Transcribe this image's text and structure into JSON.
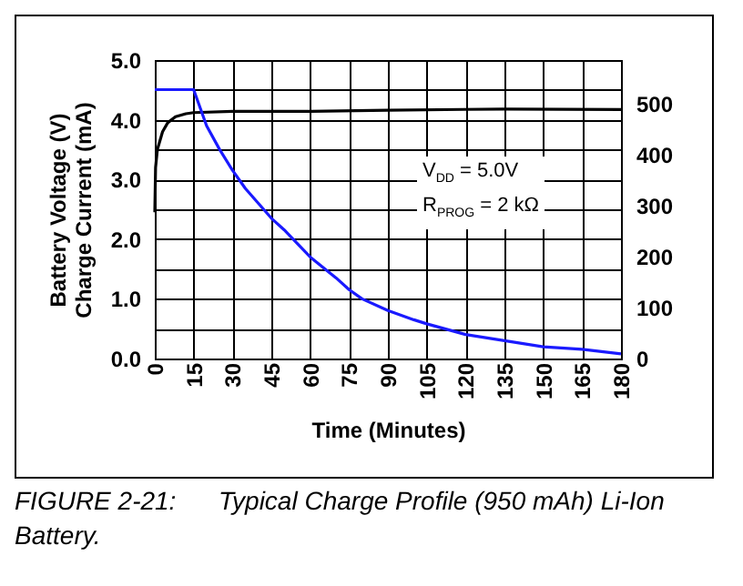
{
  "chart_data": {
    "type": "line",
    "title": "FIGURE 2-21:      Typical Charge Profile (950 mAh) Li-Ion Battery.",
    "xlabel": "Time (Minutes)",
    "ylabel": "Battery Voltage (V)\nCharge Current (mA)",
    "annotations": [
      "V$_{DD}$ = 5.0V",
      "R$_{PROG}$ = 2 kΩ"
    ],
    "series": [
      {
        "color": "#000000",
        "x": [
          0,
          0.3,
          1,
          3,
          5,
          8,
          12,
          15,
          30,
          60,
          90,
          135,
          180
        ],
        "values": [
          2.45,
          3.2,
          3.5,
          3.8,
          3.95,
          4.05,
          4.1,
          4.12,
          4.14,
          4.14,
          4.16,
          4.18,
          4.17
        ]
      },
      {
        "color": "#1a1aff",
        "axis": "y2",
        "x": [
          0,
          15,
          20,
          25,
          30,
          35,
          40,
          45,
          50,
          60,
          70,
          75,
          80,
          90,
          100,
          105,
          120,
          135,
          150,
          165,
          180
        ],
        "values": [
          527,
          527,
          456,
          410,
          369,
          333,
          304,
          275,
          252,
          199,
          158,
          135,
          117,
          94,
          76,
          68,
          47,
          35,
          23,
          18,
          9
        ]
      }
    ],
    "xlim": [
      0,
      180
    ],
    "xticks": [
      0,
      15,
      30,
      45,
      60,
      75,
      90,
      105,
      120,
      135,
      150,
      165,
      180
    ],
    "ylim": [
      0,
      5
    ],
    "yticks": [
      {
        "value": 0,
        "label": "0.0"
      },
      {
        "value": 0.5,
        "label": null
      },
      {
        "value": 1,
        "label": "1.0"
      },
      {
        "value": 1.5,
        "label": null
      },
      {
        "value": 2,
        "label": "2.0"
      },
      {
        "value": 2.5,
        "label": null
      },
      {
        "value": 3,
        "label": "3.0"
      },
      {
        "value": 3.5,
        "label": null
      },
      {
        "value": 4,
        "label": "4.0"
      },
      {
        "value": 4.5,
        "label": null
      },
      {
        "value": 5,
        "label": "5.0"
      }
    ],
    "y2lim": [
      0,
      585
    ],
    "y2ticks": [
      0,
      100,
      200,
      300,
      400,
      500
    ],
    "grid": true,
    "marker": "none",
    "line_style": "solid"
  }
}
